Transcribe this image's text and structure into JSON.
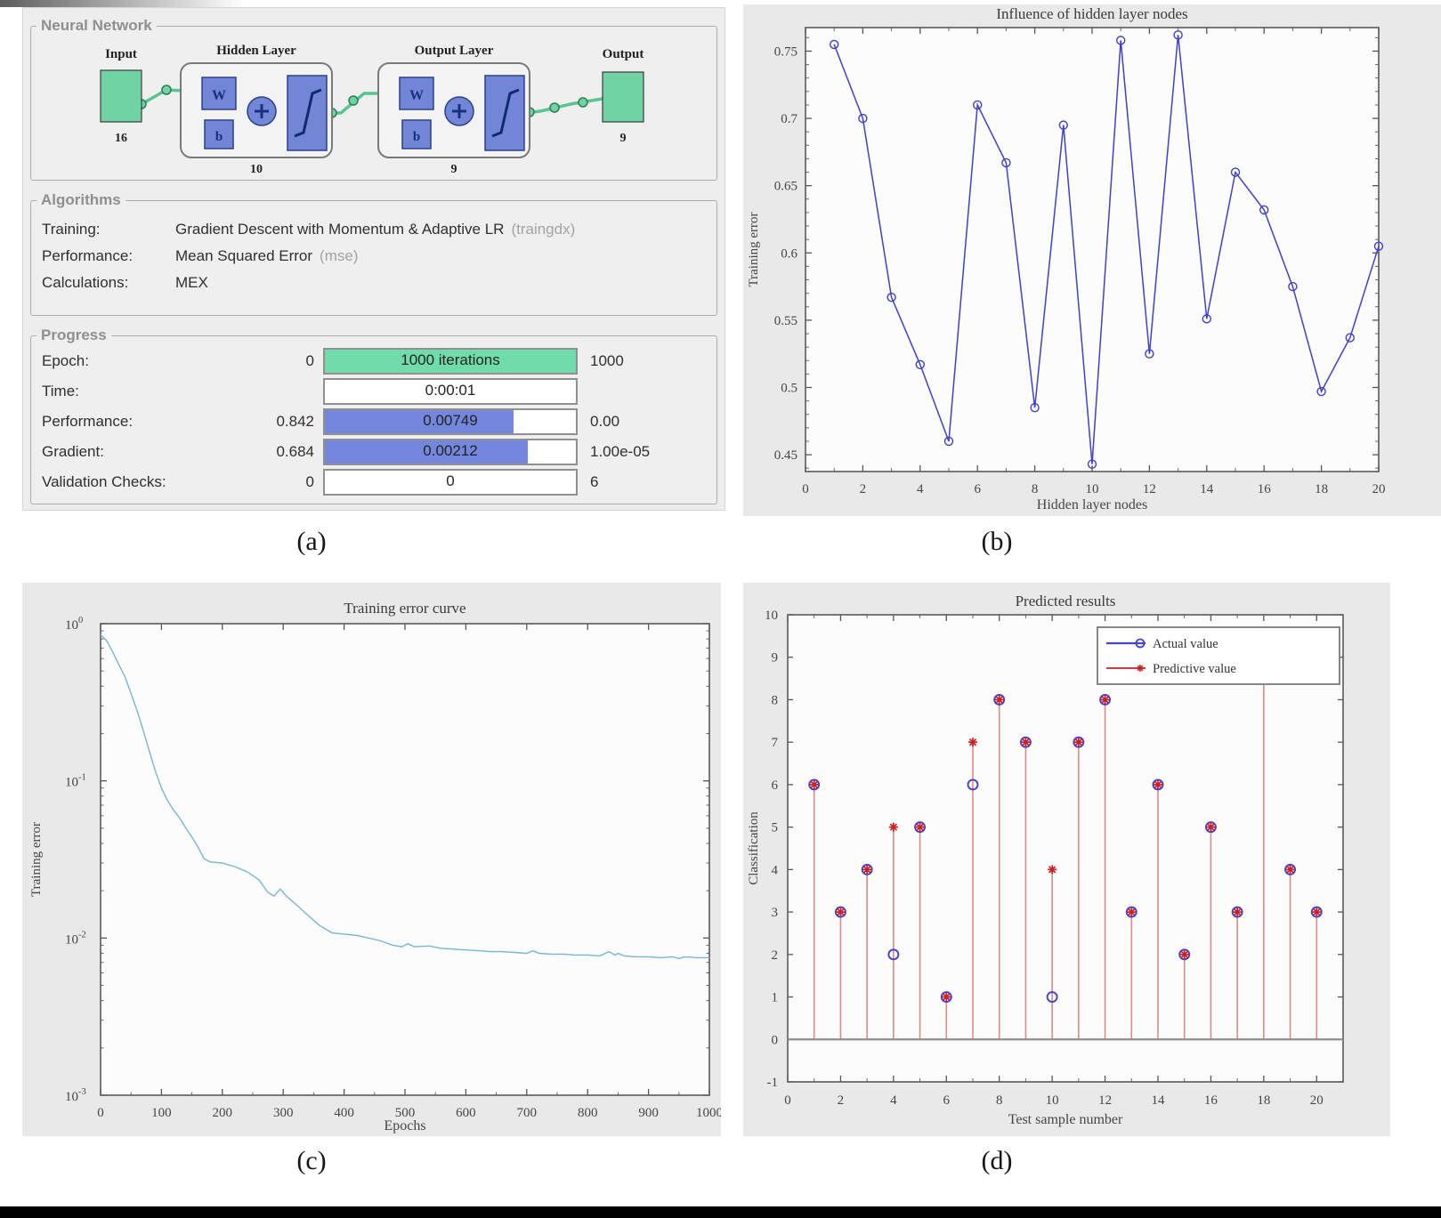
{
  "figure": {
    "captions": [
      "(a)",
      "(b)",
      "(c)",
      "(d)"
    ]
  },
  "palette": {
    "window_bg": "#ededed",
    "group_border": "#adadad",
    "legend_gray": "#8f8f8f",
    "text_dark": "#2f2f2f",
    "code_gray": "#a3a3a3",
    "bar_green": "#70dcab",
    "bar_blue": "#7587dc",
    "bar_border": "#909090",
    "nn_green": "#6fd3a3",
    "nn_blue": "#7187d6",
    "nn_blue_dark": "#16307e",
    "nn_connector_green": "#57c492",
    "figure_bg": "#e9e9e9",
    "bottom_bar": "#000000"
  },
  "nntraintool": {
    "neural_network": {
      "title": "Neural Network",
      "input_label": "Input",
      "input_count": "16",
      "hidden_layer": {
        "title": "Hidden Layer",
        "w": "W",
        "b": "b",
        "nodes": "10"
      },
      "output_layer": {
        "title": "Output Layer",
        "w": "W",
        "b": "b",
        "nodes": "9"
      },
      "output_label": "Output",
      "output_count": "9"
    },
    "algorithms": {
      "title": "Algorithms",
      "rows": [
        {
          "label": "Training:",
          "value": "Gradient Descent with Momentum & Adaptive LR",
          "code": "(traingdx)"
        },
        {
          "label": "Performance:",
          "value": "Mean Squared Error",
          "code": "(mse)"
        },
        {
          "label": "Calculations:",
          "value": "MEX",
          "code": ""
        }
      ]
    },
    "progress": {
      "title": "Progress",
      "rows": [
        {
          "label": "Epoch:",
          "left": "0",
          "bar_text": "1000 iterations",
          "right": "1000",
          "type": "green",
          "fill": 1
        },
        {
          "label": "Time:",
          "left": "",
          "bar_text": "0:00:01",
          "right": "",
          "type": "white",
          "fill": 0
        },
        {
          "label": "Performance:",
          "left": "0.842",
          "bar_text": "0.00749",
          "right": "0.00",
          "type": "blue",
          "fill": 0.75
        },
        {
          "label": "Gradient:",
          "left": "0.684",
          "bar_text": "0.00212",
          "right": "1.00e-05",
          "type": "blue",
          "fill": 0.81
        },
        {
          "label": "Validation Checks:",
          "left": "0",
          "bar_text": "0",
          "right": "6",
          "type": "white",
          "fill": 0
        }
      ]
    }
  },
  "chart_data": [
    {
      "id": "b",
      "type": "line",
      "title": "Influence of hidden layer nodes",
      "xlabel": "Hidden layer nodes",
      "ylabel": "Training error",
      "x": [
        1,
        2,
        3,
        4,
        5,
        6,
        7,
        8,
        9,
        10,
        11,
        12,
        13,
        14,
        15,
        16,
        17,
        18,
        19,
        20
      ],
      "values": [
        0.755,
        0.7,
        0.567,
        0.517,
        0.46,
        0.71,
        0.667,
        0.485,
        0.695,
        0.443,
        0.758,
        0.525,
        0.762,
        0.551,
        0.66,
        0.632,
        0.575,
        0.497,
        0.537,
        0.605
      ],
      "xlim": [
        0,
        20
      ],
      "ylim": [
        0.4375,
        0.7675
      ],
      "xticks": [
        0,
        2,
        4,
        6,
        8,
        10,
        12,
        14,
        16,
        18,
        20
      ],
      "yticks": [
        0.45,
        0.5,
        0.55,
        0.6,
        0.65,
        0.7,
        0.75
      ],
      "grid": false,
      "marker": "circle",
      "line_color": "#3f3fd1"
    },
    {
      "id": "c",
      "type": "line",
      "title": "Training error curve",
      "xlabel": "Epochs",
      "ylabel": "Training error",
      "yscale": "log",
      "xlim": [
        0,
        1000
      ],
      "ylim": [
        0.001,
        1
      ],
      "xticks": [
        0,
        100,
        200,
        300,
        400,
        500,
        600,
        700,
        800,
        900,
        1000
      ],
      "ytick_exponents": [
        0,
        -1,
        -2,
        -3
      ],
      "grid": false,
      "line_color": "#7ab4d8",
      "points": [
        [
          0,
          0.85
        ],
        [
          10,
          0.78
        ],
        [
          20,
          0.66
        ],
        [
          30,
          0.55
        ],
        [
          40,
          0.46
        ],
        [
          50,
          0.36
        ],
        [
          60,
          0.28
        ],
        [
          70,
          0.21
        ],
        [
          80,
          0.155
        ],
        [
          90,
          0.115
        ],
        [
          100,
          0.09
        ],
        [
          110,
          0.075
        ],
        [
          120,
          0.065
        ],
        [
          130,
          0.058
        ],
        [
          140,
          0.05
        ],
        [
          150,
          0.044
        ],
        [
          160,
          0.038
        ],
        [
          170,
          0.032
        ],
        [
          180,
          0.0305
        ],
        [
          200,
          0.03
        ],
        [
          220,
          0.0285
        ],
        [
          240,
          0.0265
        ],
        [
          260,
          0.0235
        ],
        [
          275,
          0.0195
        ],
        [
          285,
          0.0185
        ],
        [
          295,
          0.0205
        ],
        [
          305,
          0.0185
        ],
        [
          320,
          0.0165
        ],
        [
          340,
          0.014
        ],
        [
          360,
          0.012
        ],
        [
          380,
          0.0108
        ],
        [
          400,
          0.0106
        ],
        [
          420,
          0.0104
        ],
        [
          440,
          0.01
        ],
        [
          460,
          0.0096
        ],
        [
          480,
          0.009
        ],
        [
          495,
          0.0088
        ],
        [
          505,
          0.0092
        ],
        [
          515,
          0.0088
        ],
        [
          540,
          0.0089
        ],
        [
          560,
          0.0086
        ],
        [
          580,
          0.0085
        ],
        [
          600,
          0.0084
        ],
        [
          620,
          0.0083
        ],
        [
          640,
          0.0082
        ],
        [
          660,
          0.0082
        ],
        [
          680,
          0.0081
        ],
        [
          700,
          0.008
        ],
        [
          710,
          0.0083
        ],
        [
          720,
          0.008
        ],
        [
          740,
          0.0079
        ],
        [
          760,
          0.0079
        ],
        [
          780,
          0.0078
        ],
        [
          800,
          0.0078
        ],
        [
          820,
          0.0077
        ],
        [
          835,
          0.0082
        ],
        [
          845,
          0.0078
        ],
        [
          850,
          0.008
        ],
        [
          860,
          0.0077
        ],
        [
          880,
          0.0076
        ],
        [
          900,
          0.0076
        ],
        [
          920,
          0.0075
        ],
        [
          940,
          0.0076
        ],
        [
          950,
          0.0074
        ],
        [
          960,
          0.0076
        ],
        [
          980,
          0.0075
        ],
        [
          1000,
          0.0075
        ]
      ]
    },
    {
      "id": "d",
      "type": "stem",
      "title": "Predicted results",
      "xlabel": "Test sample number",
      "ylabel": "Classification",
      "x": [
        1,
        2,
        3,
        4,
        5,
        6,
        7,
        8,
        9,
        10,
        11,
        12,
        13,
        14,
        15,
        16,
        17,
        18,
        19,
        20
      ],
      "series": [
        {
          "name": "Actual value",
          "values": [
            6,
            3,
            4,
            2,
            5,
            1,
            6,
            8,
            7,
            1,
            7,
            8,
            3,
            6,
            2,
            5,
            3,
            9,
            4,
            3
          ],
          "color": "#4343cb",
          "marker": "circle"
        },
        {
          "name": "Predictive value",
          "values": [
            6,
            3,
            4,
            5,
            5,
            1,
            7,
            8,
            7,
            4,
            7,
            8,
            3,
            6,
            2,
            5,
            3,
            9,
            4,
            3
          ],
          "color": "#d01f1f",
          "marker": "asterisk"
        }
      ],
      "stem_color": "#d98c8c",
      "xlim": [
        0,
        21
      ],
      "ylim": [
        -1,
        10
      ],
      "xticks": [
        0,
        2,
        4,
        6,
        8,
        10,
        12,
        14,
        16,
        18,
        20
      ],
      "yticks": [
        -1,
        0,
        1,
        2,
        3,
        4,
        5,
        6,
        7,
        8,
        9,
        10
      ],
      "legend_position": "top-right",
      "grid": false
    }
  ]
}
